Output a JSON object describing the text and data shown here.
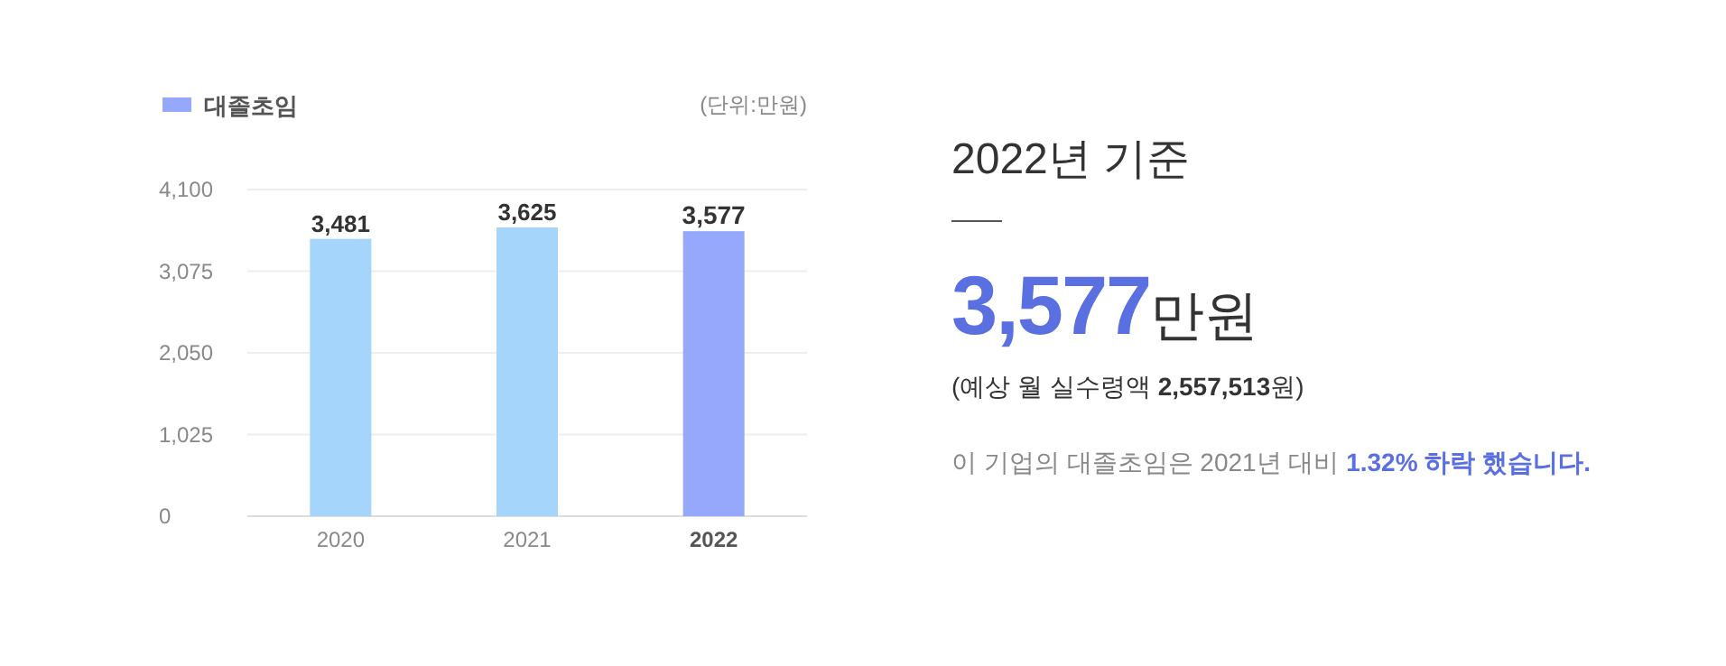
{
  "chart_data": [
    {
      "type": "bar",
      "categories": [
        "2020",
        "2021",
        "2022"
      ],
      "series": [
        {
          "name": "대졸초임",
          "color": "#96a8fb",
          "colors": [
            "#a5d5fb",
            "#a5d5fb",
            "#96a8fb"
          ],
          "values": [
            3481,
            3625,
            3577
          ],
          "value_labels": [
            "3,481",
            "3,625",
            "3,577"
          ]
        }
      ],
      "ylim": [
        0,
        4100
      ],
      "yticks": [
        0,
        {
          "value": 1025,
          "label": "1,025"
        },
        {
          "value": 2050,
          "label": "2,050"
        },
        {
          "value": 3075,
          "label": "3,075"
        },
        {
          "value": 4100,
          "label": "4,100"
        }
      ],
      "grid": "y",
      "legend": "top left",
      "annotations": [
        "(단위:만원)"
      ]
    },
    {
      "type": "other",
      "annotations": [
        "2022년 기준",
        "3,577",
        "만원",
        "(예상 월 실수령액 ",
        "2,557,513",
        "원)",
        "이 기업의 대졸초임은 2021년 대비 ",
        "1.32% 하락 했습니다."
      ]
    }
  ]
}
